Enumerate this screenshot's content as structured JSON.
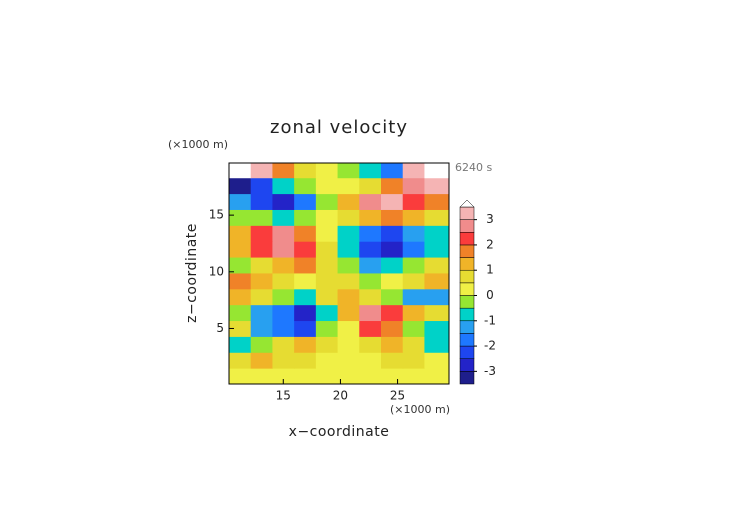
{
  "chart_data": {
    "type": "contour",
    "title": "zonal velocity",
    "time_label": "6240 s",
    "x_label": "x−coordinate",
    "y_label": "z−coordinate",
    "x_unit": "(×1000 m)",
    "y_unit": "(×1000 m)",
    "xlim": [
      10.25,
      29.5
    ],
    "ylim": [
      0.1,
      19.6
    ],
    "xticks": [
      15,
      20,
      25
    ],
    "yticks": [
      5,
      10,
      15
    ],
    "x": [
      11.2,
      13.1,
      15.0,
      16.9,
      18.8,
      20.7,
      22.6,
      24.5,
      26.4,
      28.3
    ],
    "z": [
      0.8,
      2.2,
      3.6,
      5.0,
      6.4,
      7.8,
      9.2,
      10.6,
      12.0,
      13.4,
      14.8,
      16.2,
      17.6,
      19.0
    ],
    "values": [
      [
        0.2,
        0.3,
        0.3,
        0.2,
        0.1,
        0.1,
        0.2,
        0.3,
        0.3,
        0.2
      ],
      [
        0.8,
        1.0,
        0.8,
        0.6,
        0.3,
        0.2,
        0.4,
        0.6,
        0.5,
        0.4
      ],
      [
        -0.8,
        -0.5,
        0.5,
        1.0,
        0.5,
        0.2,
        0.6,
        1.0,
        0.5,
        -0.8
      ],
      [
        0.5,
        -1.2,
        -1.8,
        -2.5,
        -0.5,
        0.4,
        2.0,
        1.5,
        -0.5,
        -1.0
      ],
      [
        -0.5,
        -1.5,
        -2.0,
        -3.0,
        -1.0,
        1.0,
        2.5,
        2.0,
        1.0,
        0.5
      ],
      [
        1.0,
        0.5,
        -0.5,
        -1.0,
        0.5,
        1.0,
        0.5,
        -0.5,
        -1.2,
        -1.5
      ],
      [
        1.5,
        1.0,
        0.5,
        0.3,
        0.8,
        0.5,
        -0.3,
        0.0,
        0.5,
        1.0
      ],
      [
        -0.5,
        0.5,
        1.0,
        1.5,
        0.5,
        -0.5,
        -1.5,
        -1.0,
        -0.5,
        0.5
      ],
      [
        1.0,
        2.0,
        2.8,
        2.0,
        0.5,
        -1.0,
        -2.5,
        -3.0,
        -2.0,
        -1.0
      ],
      [
        1.2,
        2.0,
        2.5,
        1.5,
        0.3,
        -1.0,
        -2.0,
        -2.5,
        -1.5,
        -1.0
      ],
      [
        -0.5,
        -0.5,
        -1.0,
        -0.5,
        0.0,
        0.5,
        1.0,
        1.5,
        1.0,
        0.5
      ],
      [
        -1.5,
        -2.5,
        -3.0,
        -2.0,
        -0.5,
        1.0,
        2.5,
        3.0,
        2.0,
        1.5
      ],
      [
        -3.2,
        -2.5,
        -1.0,
        -0.5,
        0.0,
        0.0,
        0.5,
        1.5,
        2.8,
        3.2
      ],
      [
        3.6,
        3.0,
        1.5,
        0.5,
        0.0,
        -0.5,
        -1.0,
        -2.0,
        3.0,
        3.6
      ]
    ],
    "colorbar": {
      "levels": [
        -3.5,
        -3,
        -2.5,
        -2,
        -1.5,
        -1,
        -0.5,
        0,
        0.5,
        1,
        1.5,
        2,
        2.5,
        3,
        3.5
      ],
      "colors": [
        "#1e1e8c",
        "#2323c8",
        "#1e46f0",
        "#1e78ff",
        "#28a0f0",
        "#00d2c8",
        "#96e632",
        "#f0f046",
        "#e6dc32",
        "#f0b428",
        "#f08228",
        "#fa3c3c",
        "#f08c8c",
        "#f5b4b4",
        "#ffffff"
      ],
      "ticks": [
        -3,
        -2,
        -1,
        0,
        1,
        2,
        3
      ]
    }
  }
}
